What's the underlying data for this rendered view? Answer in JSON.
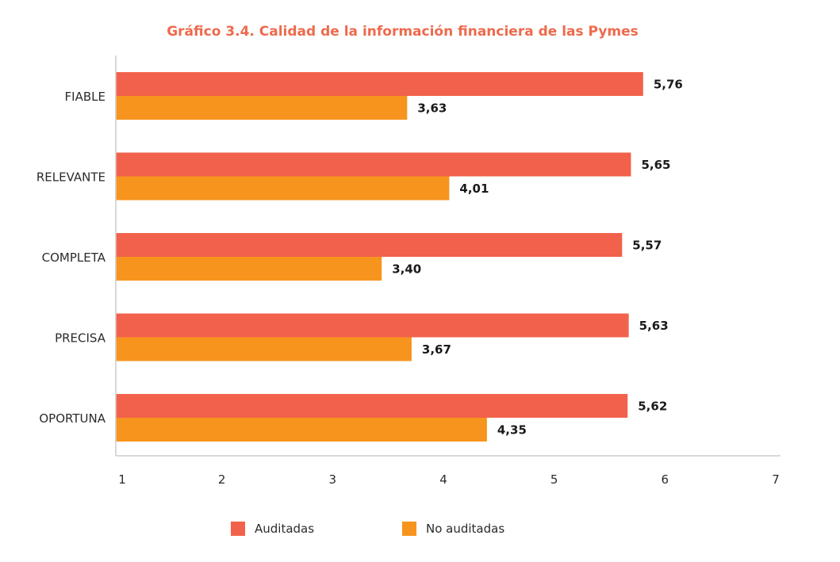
{
  "chart_data": {
    "type": "bar",
    "orientation": "horizontal",
    "title": "Gráfico 3.4. Calidad de la información financiera de las Pymes",
    "categories": [
      "FIABLE",
      "RELEVANTE",
      "COMPLETA",
      "PRECISA",
      "OPORTUNA"
    ],
    "series": [
      {
        "name": "Auditadas",
        "color": "#f2614b",
        "values": [
          5.76,
          5.65,
          5.57,
          5.63,
          5.62
        ],
        "value_labels": [
          "5,76",
          "5,65",
          "5,57",
          "5,63",
          "5,62"
        ]
      },
      {
        "name": "No auditadas",
        "color": "#f7941d",
        "values": [
          3.63,
          4.01,
          3.4,
          3.67,
          4.35
        ],
        "value_labels": [
          "3,63",
          "4,01",
          "3,40",
          "3,67",
          "4,35"
        ]
      }
    ],
    "xlim": [
      1,
      7
    ],
    "xticks": [
      "1",
      "2",
      "3",
      "4",
      "5",
      "6",
      "7"
    ],
    "grid": false,
    "legend_position": "bottom"
  },
  "colors": {
    "title": "#ee6a4c",
    "axis": "#cccccc"
  }
}
